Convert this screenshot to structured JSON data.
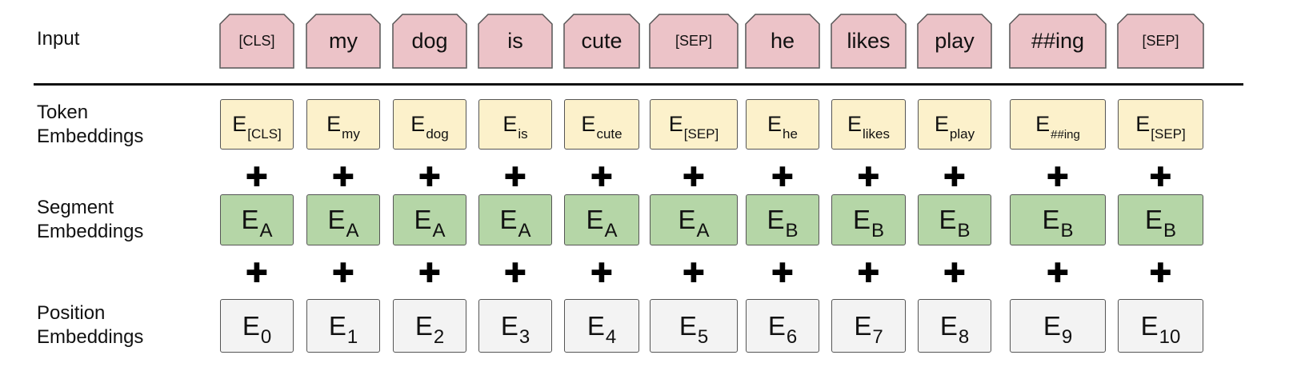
{
  "labels": {
    "input": "Input",
    "token": [
      "Token",
      "Embeddings"
    ],
    "segment": [
      "Segment",
      "Embeddings"
    ],
    "position": [
      "Position",
      "Embeddings"
    ]
  },
  "plus_symbol": "✚",
  "input_tokens": [
    "[CLS]",
    "my",
    "dog",
    "is",
    "cute",
    "[SEP]",
    "he",
    "likes",
    "play",
    "##ing",
    "[SEP]"
  ],
  "token_embeddings": [
    {
      "E": "E",
      "sub": "[CLS]"
    },
    {
      "E": "E",
      "sub": "my"
    },
    {
      "E": "E",
      "sub": "dog"
    },
    {
      "E": "E",
      "sub": "is"
    },
    {
      "E": "E",
      "sub": "cute"
    },
    {
      "E": "E",
      "sub": "[SEP]"
    },
    {
      "E": "E",
      "sub": "he"
    },
    {
      "E": "E",
      "sub": "likes"
    },
    {
      "E": "E",
      "sub": "play"
    },
    {
      "E": "E",
      "sub": "##ing"
    },
    {
      "E": "E",
      "sub": "[SEP]"
    }
  ],
  "segment_embeddings": [
    {
      "E": "E",
      "sub": "A"
    },
    {
      "E": "E",
      "sub": "A"
    },
    {
      "E": "E",
      "sub": "A"
    },
    {
      "E": "E",
      "sub": "A"
    },
    {
      "E": "E",
      "sub": "A"
    },
    {
      "E": "E",
      "sub": "A"
    },
    {
      "E": "E",
      "sub": "B"
    },
    {
      "E": "E",
      "sub": "B"
    },
    {
      "E": "E",
      "sub": "B"
    },
    {
      "E": "E",
      "sub": "B"
    },
    {
      "E": "E",
      "sub": "B"
    }
  ],
  "position_embeddings": [
    {
      "E": "E",
      "sub": "0"
    },
    {
      "E": "E",
      "sub": "1"
    },
    {
      "E": "E",
      "sub": "2"
    },
    {
      "E": "E",
      "sub": "3"
    },
    {
      "E": "E",
      "sub": "4"
    },
    {
      "E": "E",
      "sub": "5"
    },
    {
      "E": "E",
      "sub": "6"
    },
    {
      "E": "E",
      "sub": "7"
    },
    {
      "E": "E",
      "sub": "8"
    },
    {
      "E": "E",
      "sub": "9"
    },
    {
      "E": "E",
      "sub": "10"
    }
  ],
  "colors": {
    "input": "#ecc3c8",
    "token": "#fcf1cb",
    "segment": "#b5d6a7",
    "position": "#f3f3f3"
  }
}
